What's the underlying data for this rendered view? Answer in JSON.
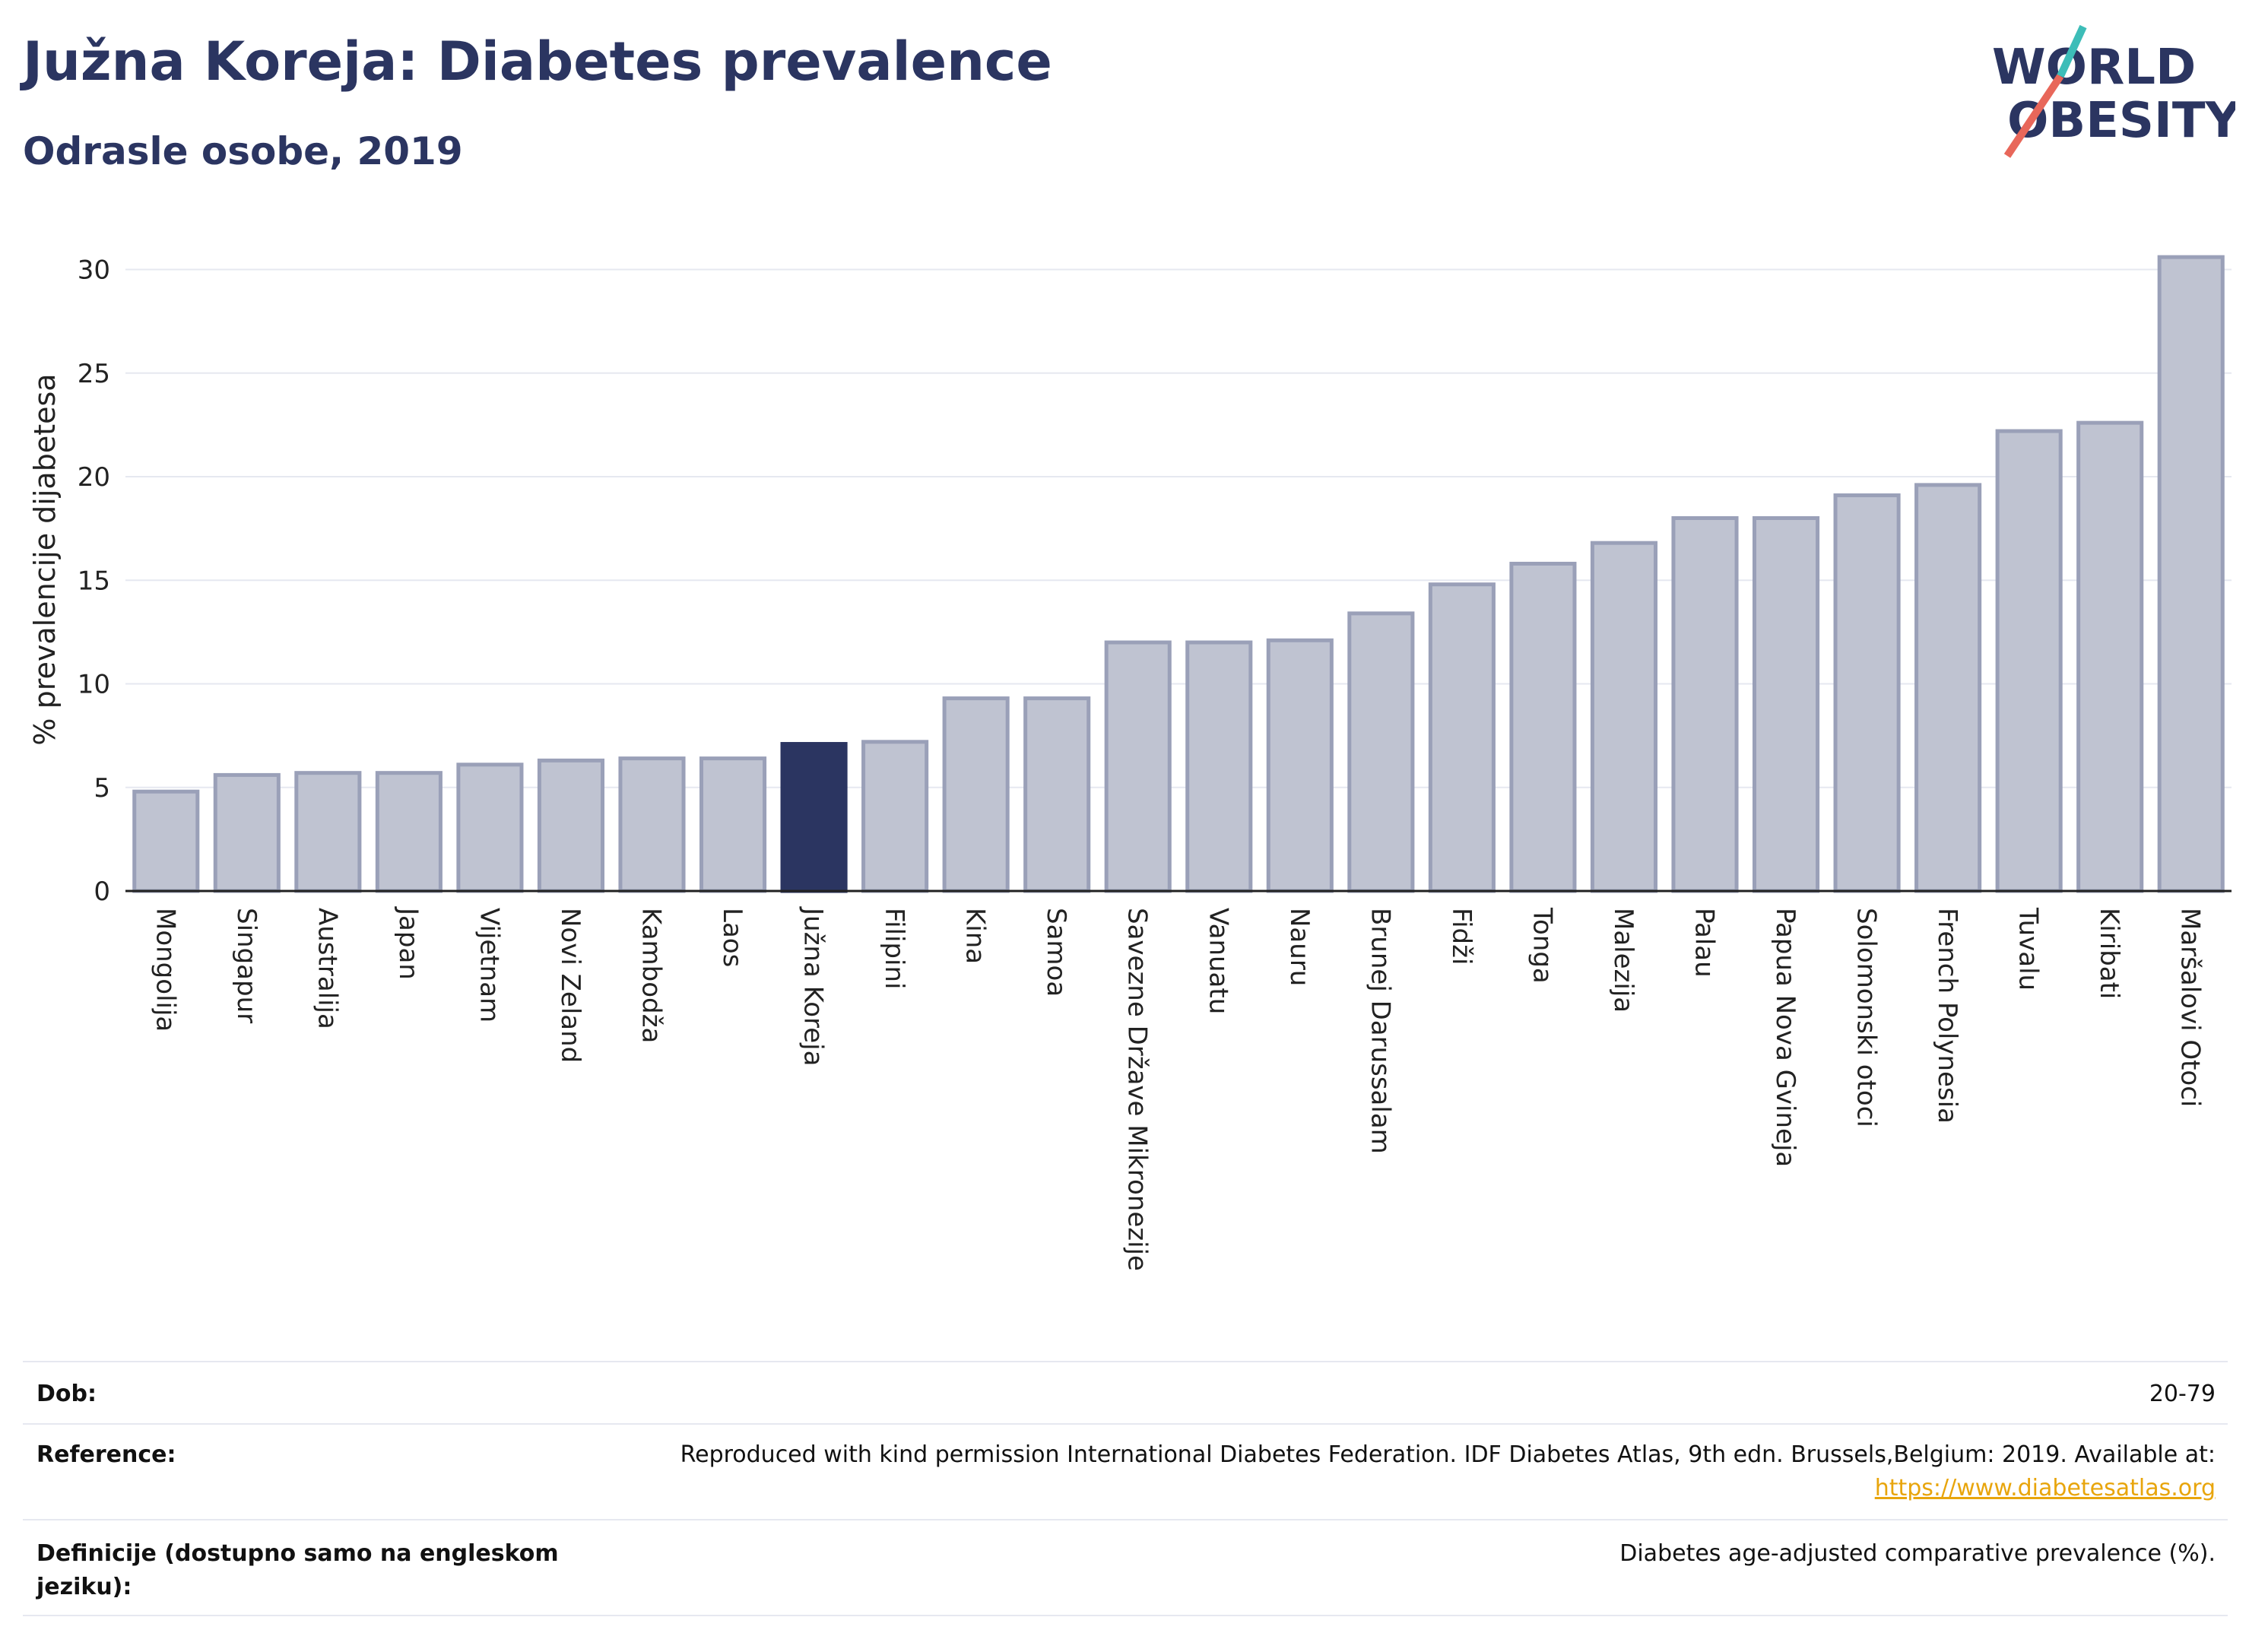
{
  "title": "Južna Koreja: Diabetes prevalence",
  "subtitle": "Odrasle osobe, 2019",
  "logo": {
    "line1": "WORLD",
    "line2": "OBESITY",
    "colors": {
      "text": "#2b3561",
      "slash_a": "#e8675a",
      "slash_b": "#3dbdb8"
    }
  },
  "colors": {
    "bar": "#bfc3d1",
    "bar_border": "#9aa0b8",
    "highlight": "#2b3561",
    "grid": "#e6e8f0",
    "axis": "#222222"
  },
  "chart_data": {
    "type": "bar",
    "ylabel": "% prevalencije dijabetesa",
    "ylim": [
      0,
      32
    ],
    "yticks": [
      0,
      5,
      10,
      15,
      20,
      25,
      30
    ],
    "highlight": "Južna Koreja",
    "categories": [
      "Mongolija",
      "Singapur",
      "Australija",
      "Japan",
      "Vijetnam",
      "Novi Zeland",
      "Kambodža",
      "Laos",
      "Južna Koreja",
      "Filipini",
      "Kina",
      "Samoa",
      "Savezne Države Mikronezije",
      "Vanuatu",
      "Nauru",
      "Brunej Darussalam",
      "Fidži",
      "Tonga",
      "Malezija",
      "Palau",
      "Papua Nova Gvineja",
      "Solomonski otoci",
      "French Polynesia",
      "Tuvalu",
      "Kiribati",
      "Maršalovi Otoci"
    ],
    "values": [
      4.8,
      5.6,
      5.7,
      5.7,
      6.1,
      6.3,
      6.4,
      6.4,
      7.1,
      7.2,
      9.3,
      9.3,
      12.0,
      12.0,
      12.1,
      13.4,
      14.8,
      15.8,
      16.8,
      18.0,
      18.0,
      19.1,
      19.6,
      22.2,
      22.6,
      30.6
    ]
  },
  "meta": {
    "age_label": "Dob:",
    "age_value": "20-79",
    "reference_label": "Reference:",
    "reference_text": "Reproduced with kind permission International Diabetes Federation. IDF Diabetes Atlas, 9th edn. Brussels,Belgium: 2019. Available at:",
    "reference_link": "https://www.diabetesatlas.org",
    "definition_label": "Definicije (dostupno samo na engleskom jeziku):",
    "definition_value": "Diabetes age-adjusted comparative prevalence (%)."
  }
}
